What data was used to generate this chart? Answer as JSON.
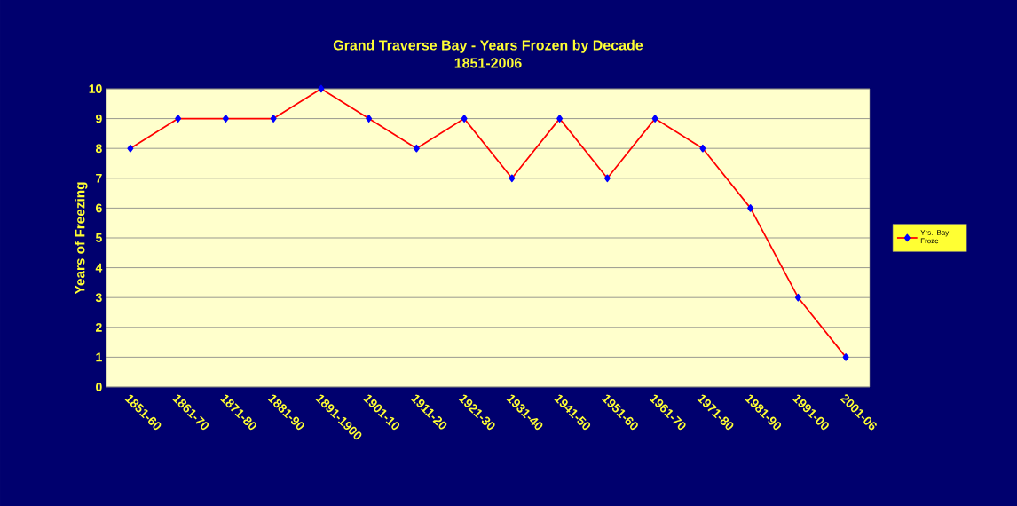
{
  "chart_data": {
    "type": "line",
    "title": "Grand Traverse Bay - Years Frozen by Decade",
    "subtitle": "1851-2006",
    "ylabel": "Years of Freezing",
    "categories": [
      "1851-60",
      "1861-70",
      "1871-80",
      "1881-90",
      "1891-1900",
      "1901-10",
      "1911-20",
      "1921-30",
      "1931-40",
      "1941-50",
      "1951-60",
      "1961-70",
      "1971-80",
      "1981-90",
      "1991-00",
      "2001-06"
    ],
    "series": [
      {
        "name": "Yrs. Bay Froze",
        "color": "#ff0000",
        "values": [
          8,
          9,
          9,
          9,
          10,
          9,
          8,
          9,
          7,
          9,
          7,
          9,
          8,
          6,
          3,
          1
        ]
      }
    ],
    "ylim": [
      0,
      10
    ],
    "yticks": [
      0,
      1,
      2,
      3,
      4,
      5,
      6,
      7,
      8,
      9,
      10
    ],
    "grid": "y",
    "legend": "right",
    "marker": "diamond",
    "line_style": "solid"
  }
}
